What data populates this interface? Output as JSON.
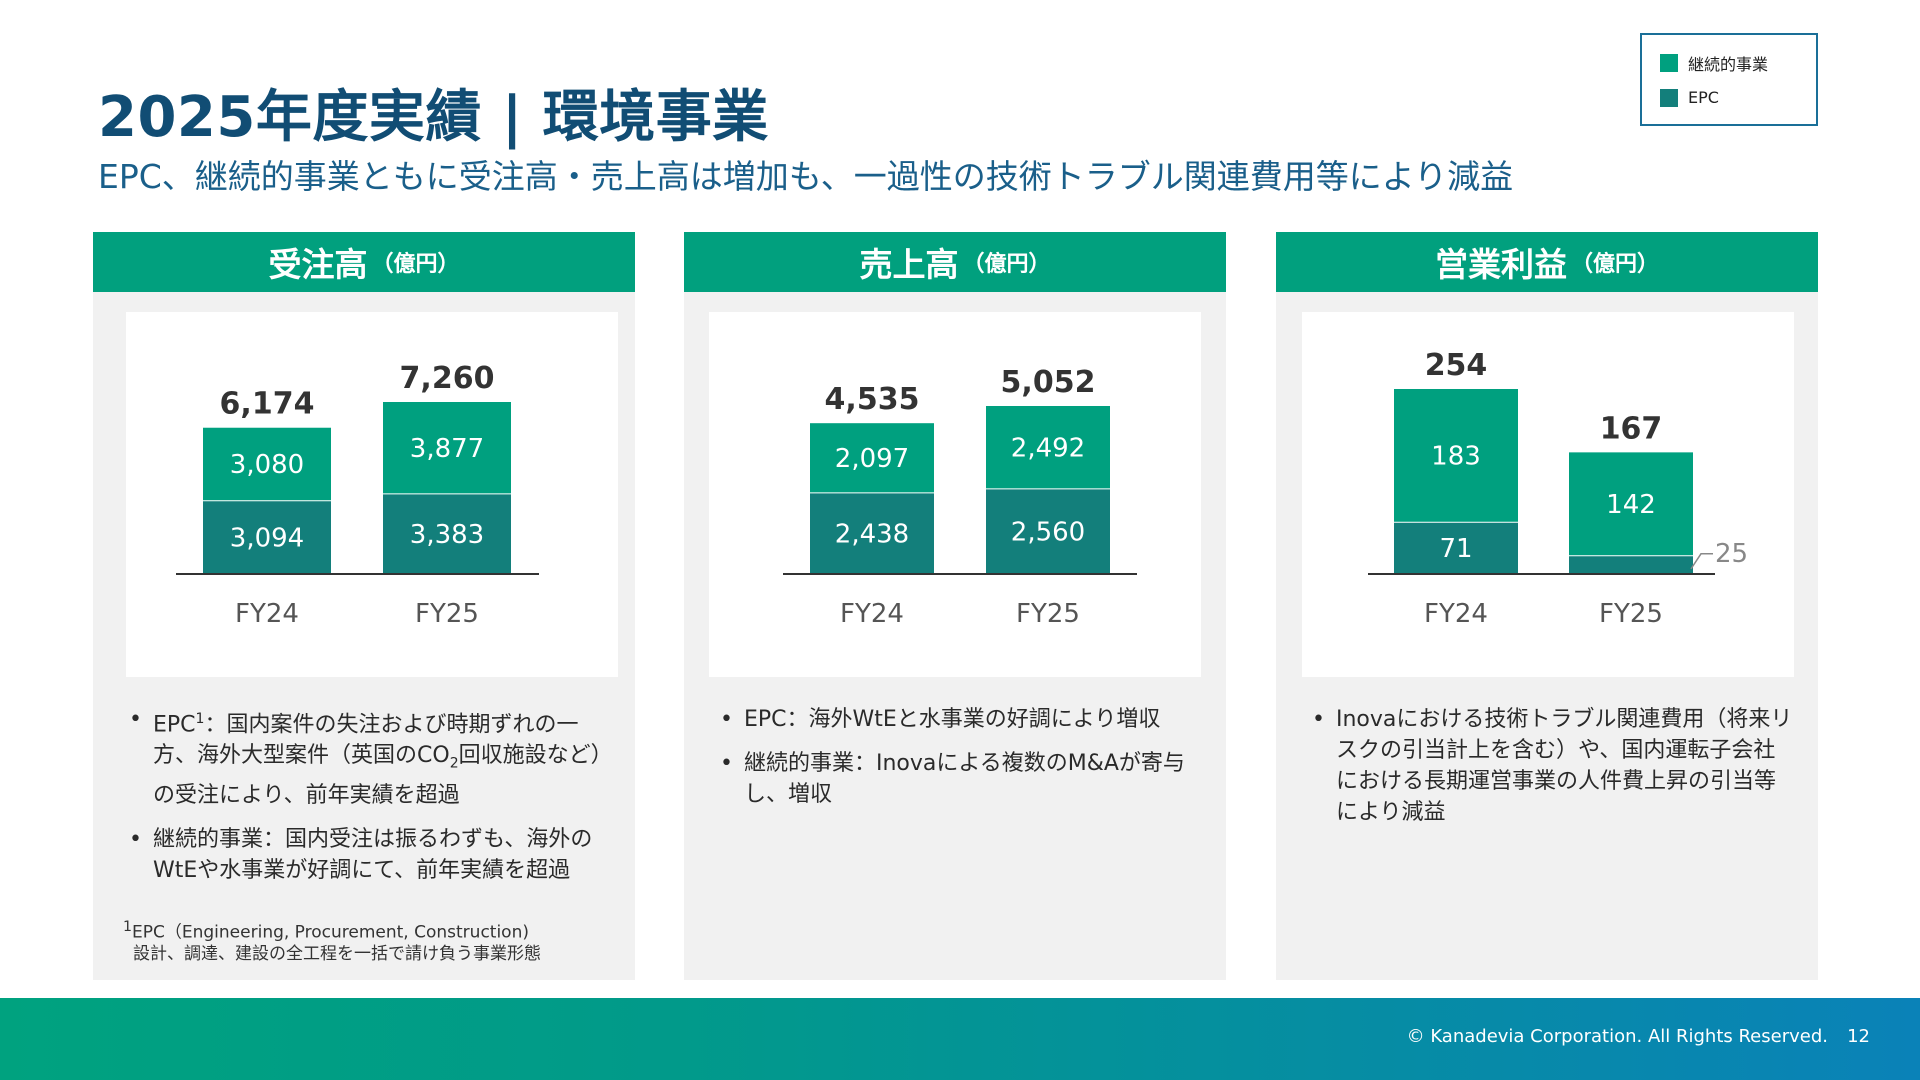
{
  "title": "2025年度実績 | 環境事業",
  "subtitle": "EPC、継続的事業ともに受注高・売上高は増加も、一過性の技術トラブル関連費用等により減益",
  "legend": {
    "items": [
      {
        "label": "継続的事業",
        "color": "#00a07f"
      },
      {
        "label": "EPC",
        "color": "#137f7b"
      }
    ]
  },
  "colors": {
    "continuing": "#00a07f",
    "epc": "#137f7b",
    "header": "#01a07e",
    "title": "#114d74"
  },
  "panels": [
    {
      "title": "受注高",
      "unit": "（億円）",
      "bullets": [
        {
          "pre": "EPC",
          "sup": "1",
          "text": "：国内案件の失注および時期ずれの一方、海外大型案件（英国のCO",
          "sub": "2",
          "post": "回収施設など）の受注により、前年実績を超過"
        },
        {
          "text": "継続的事業：国内受注は振るわずも、海外のWtEや水事業が好調にて、前年実績を超過"
        }
      ],
      "footnote": {
        "line1": "EPC（Engineering, Procurement, Construction)",
        "sup": "1",
        "line2": "設計、調達、建設の全工程を一括で請け負う事業形態"
      }
    },
    {
      "title": "売上高",
      "unit": "（億円）",
      "bullets": [
        {
          "text": "EPC：海外WtEと水事業の好調により増収"
        },
        {
          "text": "継続的事業：Inovaによる複数のM&Aが寄与し、増収"
        }
      ]
    },
    {
      "title": "営業利益",
      "unit": "（億円）",
      "bullets": [
        {
          "text": "Inovaにおける技術トラブル関連費用（将来リスクの引当計上を含む）や、国内運転子会社における長期運営事業の人件費上昇の引当等により減益"
        }
      ]
    }
  ],
  "chart_data": [
    {
      "type": "bar",
      "stacked": true,
      "title": "受注高（億円）",
      "categories": [
        "FY24",
        "FY25"
      ],
      "series": [
        {
          "name": "EPC",
          "values": [
            3094,
            3383
          ],
          "labels": [
            "3,094",
            "3,383"
          ]
        },
        {
          "name": "継続的事業",
          "values": [
            3080,
            3877
          ],
          "labels": [
            "3,080",
            "3,877"
          ]
        }
      ],
      "totals": [
        6174,
        7260
      ],
      "total_labels": [
        "6,174",
        "7,260"
      ]
    },
    {
      "type": "bar",
      "stacked": true,
      "title": "売上高（億円）",
      "categories": [
        "FY24",
        "FY25"
      ],
      "series": [
        {
          "name": "EPC",
          "values": [
            2438,
            2560
          ],
          "labels": [
            "2,438",
            "2,560"
          ]
        },
        {
          "name": "継続的事業",
          "values": [
            2097,
            2492
          ],
          "labels": [
            "2,097",
            "2,492"
          ]
        }
      ],
      "totals": [
        4535,
        5052
      ],
      "total_labels": [
        "4,535",
        "5,052"
      ]
    },
    {
      "type": "bar",
      "stacked": true,
      "title": "営業利益（億円）",
      "categories": [
        "FY24",
        "FY25"
      ],
      "series": [
        {
          "name": "EPC",
          "values": [
            71,
            25
          ],
          "labels": [
            "71",
            "25"
          ]
        },
        {
          "name": "継続的事業",
          "values": [
            183,
            142
          ],
          "labels": [
            "183",
            "142"
          ]
        }
      ],
      "totals": [
        254,
        167
      ],
      "total_labels": [
        "254",
        "167"
      ]
    }
  ],
  "footer": {
    "copyright": "© Kanadevia Corporation. All Rights Reserved.",
    "page": "12"
  }
}
